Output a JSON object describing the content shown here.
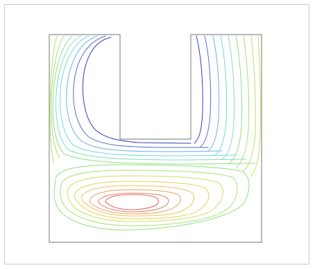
{
  "figure": {
    "description_visible_text": "",
    "palette": {
      "frame": "#c8c8c8",
      "domain": "#8c8c8c",
      "deep_blue": "#3a3ab0",
      "blue": "#4a6fd0",
      "light_blue": "#6fb0e0",
      "cyan": "#6fd8d8",
      "teal": "#7fe0b8",
      "green": "#8fe07f",
      "yellow_green": "#c8e060",
      "yellow": "#e8d050",
      "orange": "#e8a060",
      "red": "#d86060"
    }
  }
}
